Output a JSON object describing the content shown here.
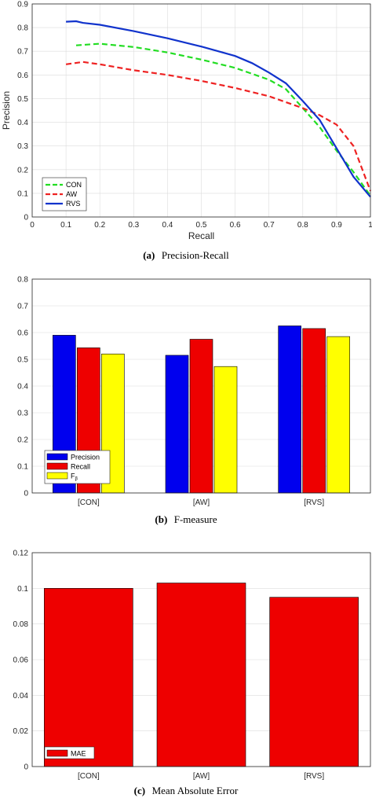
{
  "chart_data": [
    {
      "type": "line",
      "xlabel": "Recall",
      "ylabel": "Precision",
      "xlim": [
        0,
        1
      ],
      "ylim": [
        0,
        0.9
      ],
      "xticks": [
        "0",
        "0.1",
        "0.2",
        "0.3",
        "0.4",
        "0.5",
        "0.6",
        "0.7",
        "0.8",
        "0.9",
        "1"
      ],
      "yticks": [
        "0",
        "0.1",
        "0.2",
        "0.3",
        "0.4",
        "0.5",
        "0.6",
        "0.7",
        "0.8",
        "0.9"
      ],
      "grid": true,
      "legend_position": "bottom-left",
      "caption_letter": "(a)",
      "caption_text": "Precision-Recall",
      "series": [
        {
          "name": "CON",
          "color": "#22dd22",
          "dash": "dashed",
          "x": [
            0.13,
            0.2,
            0.3,
            0.4,
            0.5,
            0.6,
            0.7,
            0.75,
            0.8,
            0.85,
            0.9,
            0.95,
            1.0
          ],
          "y": [
            0.725,
            0.732,
            0.718,
            0.695,
            0.665,
            0.63,
            0.58,
            0.54,
            0.46,
            0.38,
            0.28,
            0.19,
            0.09
          ]
        },
        {
          "name": "AW",
          "color": "#ee2222",
          "dash": "dashed",
          "x": [
            0.1,
            0.15,
            0.2,
            0.3,
            0.4,
            0.5,
            0.6,
            0.7,
            0.8,
            0.85,
            0.9,
            0.95,
            1.0
          ],
          "y": [
            0.645,
            0.655,
            0.645,
            0.62,
            0.6,
            0.575,
            0.545,
            0.51,
            0.46,
            0.43,
            0.39,
            0.3,
            0.11
          ]
        },
        {
          "name": "RVS",
          "color": "#1133cc",
          "dash": "solid",
          "x": [
            0.1,
            0.13,
            0.15,
            0.2,
            0.3,
            0.4,
            0.5,
            0.55,
            0.6,
            0.65,
            0.7,
            0.75,
            0.8,
            0.85,
            0.9,
            0.95,
            1.0
          ],
          "y": [
            0.825,
            0.827,
            0.82,
            0.812,
            0.785,
            0.755,
            0.72,
            0.7,
            0.68,
            0.65,
            0.61,
            0.565,
            0.49,
            0.41,
            0.29,
            0.17,
            0.085
          ]
        }
      ]
    },
    {
      "type": "bar",
      "categories": [
        "[CON]",
        "[AW]",
        "[RVS]"
      ],
      "ylim": [
        0,
        0.8
      ],
      "yticks": [
        "0",
        "0.1",
        "0.2",
        "0.3",
        "0.4",
        "0.5",
        "0.6",
        "0.7",
        "0.8"
      ],
      "legend_position": "bottom-left",
      "caption_letter": "(b)",
      "caption_text": "F-measure",
      "series": [
        {
          "name": "Precision",
          "color": "#0000ee",
          "values": [
            0.59,
            0.515,
            0.625
          ]
        },
        {
          "name": "Recall",
          "color": "#ee0000",
          "values": [
            0.543,
            0.575,
            0.615
          ]
        },
        {
          "name": "F",
          "color": "#ffff00",
          "values": [
            0.52,
            0.473,
            0.585
          ]
        }
      ],
      "legend_f_subscript": "β"
    },
    {
      "type": "bar",
      "categories": [
        "[CON]",
        "[AW]",
        "[RVS]"
      ],
      "ylim": [
        0,
        0.12
      ],
      "yticks": [
        "0",
        "0.02",
        "0.04",
        "0.06",
        "0.08",
        "0.1",
        "0.12"
      ],
      "legend_position": "bottom-left",
      "caption_letter": "(c)",
      "caption_text": "Mean Absolute Error",
      "series": [
        {
          "name": "MAE",
          "color": "#ee0000",
          "values": [
            0.1,
            0.103,
            0.095
          ]
        }
      ]
    }
  ]
}
